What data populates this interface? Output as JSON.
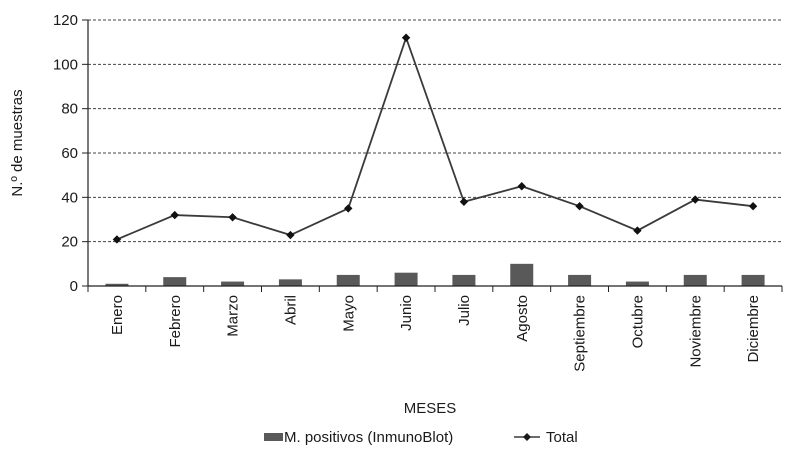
{
  "chart_data": {
    "type": "bar",
    "title": "",
    "xlabel": "MESES",
    "ylabel": "N.º de muestras",
    "ylim": [
      0,
      120
    ],
    "yticks": [
      0,
      20,
      40,
      60,
      80,
      100,
      120
    ],
    "grid": true,
    "legend_position": "bottom",
    "categories": [
      "Enero",
      "Febrero",
      "Marzo",
      "Abril",
      "Mayo",
      "Junio",
      "Julio",
      "Agosto",
      "Septiembre",
      "Octubre",
      "Noviembre",
      "Diciembre"
    ],
    "series": [
      {
        "name": "M. positivos (InmunoBlot)",
        "type": "bar",
        "color": "#595959",
        "values": [
          1,
          4,
          2,
          3,
          5,
          6,
          5,
          10,
          5,
          2,
          5,
          5
        ]
      },
      {
        "name": "Total",
        "type": "line",
        "marker": "diamond",
        "color": "#3a3a3a",
        "values": [
          21,
          32,
          31,
          23,
          35,
          112,
          38,
          45,
          36,
          25,
          39,
          36
        ]
      }
    ]
  }
}
